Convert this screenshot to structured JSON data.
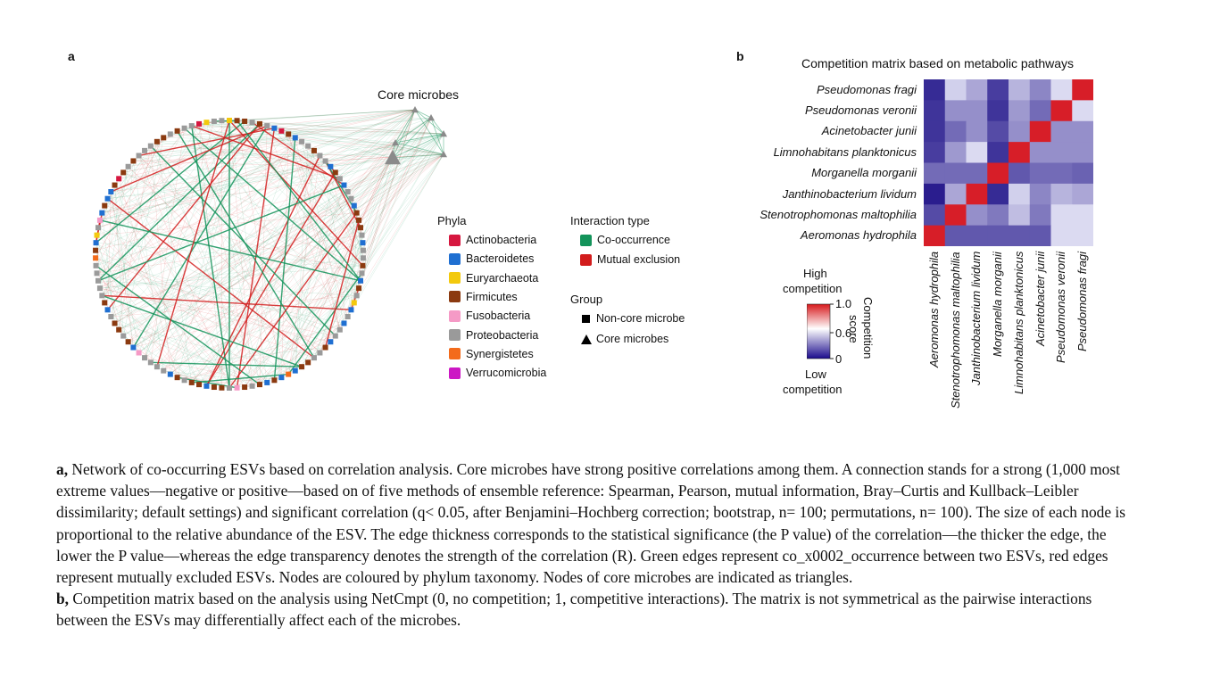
{
  "panel_a": {
    "letter": "a",
    "core_label": "Core microbes",
    "phyla": {
      "title": "Phyla",
      "items": [
        {
          "label": "Actinobacteria",
          "color": "#d6173f"
        },
        {
          "label": "Bacteroidetes",
          "color": "#1f6fd1"
        },
        {
          "label": "Euryarchaeota",
          "color": "#f3c90d"
        },
        {
          "label": "Firmicutes",
          "color": "#8b3a10"
        },
        {
          "label": "Fusobacteria",
          "color": "#f59ac6"
        },
        {
          "label": "Proteobacteria",
          "color": "#9a9a9a"
        },
        {
          "label": "Synergistetes",
          "color": "#f36b1b"
        },
        {
          "label": "Verrucomicrobia",
          "color": "#cc17c4"
        }
      ]
    },
    "interaction": {
      "title": "Interaction type",
      "items": [
        {
          "label": "Co-occurrence",
          "color": "#13935a"
        },
        {
          "label": "Mutual exclusion",
          "color": "#d21c1c"
        }
      ]
    },
    "group": {
      "title": "Group",
      "items": [
        {
          "label": "Non-core microbe",
          "shape": "square"
        },
        {
          "label": "Core microbes",
          "shape": "triangle"
        }
      ]
    }
  },
  "panel_b": {
    "letter": "b",
    "title": "Competition matrix based on metabolic pathways",
    "legend": {
      "high": "High",
      "high2": "competition",
      "low": "Low",
      "low2": "competition",
      "axis_title_1": "Competition",
      "axis_title_2": "score",
      "ticks": [
        "1.0",
        "0.6",
        "0"
      ]
    }
  },
  "chart_data": {
    "type": "heatmap",
    "title": "Competition matrix based on metabolic pathways",
    "rows": [
      "Pseudomonas fragi",
      "Pseudomonas veronii",
      "Acinetobacter junii",
      "Limnohabitans planktonicus",
      "Morganella morganii",
      "Janthinobacterium lividum",
      "Stenotrophomonas maltophilia",
      "Aeromonas hydrophila"
    ],
    "columns": [
      "Aeromonas hydrophila",
      "Stenotrophomonas maltophilia",
      "Janthinobacterium lividum",
      "Morganella morganii",
      "Limnohabitans planktonicus",
      "Acinetobacter junii",
      "Pseudomonas veronii",
      "Pseudomonas fragi"
    ],
    "values": [
      [
        0.08,
        0.45,
        0.35,
        0.12,
        0.38,
        0.28,
        0.62,
        1.0
      ],
      [
        0.1,
        0.3,
        0.3,
        0.1,
        0.32,
        0.22,
        1.0,
        0.58
      ],
      [
        0.1,
        0.22,
        0.3,
        0.15,
        0.3,
        1.0,
        0.3,
        0.3
      ],
      [
        0.12,
        0.32,
        0.52,
        0.1,
        1.0,
        0.3,
        0.3,
        0.3
      ],
      [
        0.22,
        0.22,
        0.22,
        1.0,
        0.18,
        0.22,
        0.22,
        0.2
      ],
      [
        0.05,
        0.35,
        1.0,
        0.08,
        0.48,
        0.28,
        0.38,
        0.35
      ],
      [
        0.15,
        1.0,
        0.3,
        0.25,
        0.4,
        0.25,
        0.52,
        0.52
      ],
      [
        1.0,
        0.18,
        0.18,
        0.18,
        0.18,
        0.18,
        0.52,
        0.52
      ]
    ],
    "colorbar": {
      "min": 0,
      "max": 1.0,
      "ticks": [
        1.0,
        0.6,
        0
      ],
      "label": "Competition score"
    }
  },
  "caption": {
    "a_label": "a,",
    "a_text": " Network of co-occurring ESVs based on correlation analysis. Core microbes have strong positive correlations among them. A connection stands for a strong (1,000 most extreme values—negative or positive—based on of five methods of ensemble reference: Spearman, Pearson, mutual information, Bray–Curtis and Kullback–Leibler dissimilarity; default settings) and significant correlation (q< 0.05, after Benjamini–Hochberg correction; bootstrap, n= 100; permutations, n= 100). The size of each node is proportional to the relative abundance of the ESV. The edge thickness corresponds to the statistical significance (the P value) of the correlation—the thicker the edge, the lower the P value—whereas the edge transparency denotes the strength of the correlation (R). Green edges represent co_x0002_occurrence between two ESVs, red edges represent mutually excluded ESVs. Nodes are coloured by phylum taxonomy. Nodes of core microbes are indicated as triangles.",
    "b_label": "b,",
    "b_text": " Competition matrix based on the analysis using NetCmpt (0, no competition; 1, competitive interactions). The matrix is not symmetrical as the pairwise interactions between the ESVs may differentially affect each of the microbes."
  }
}
